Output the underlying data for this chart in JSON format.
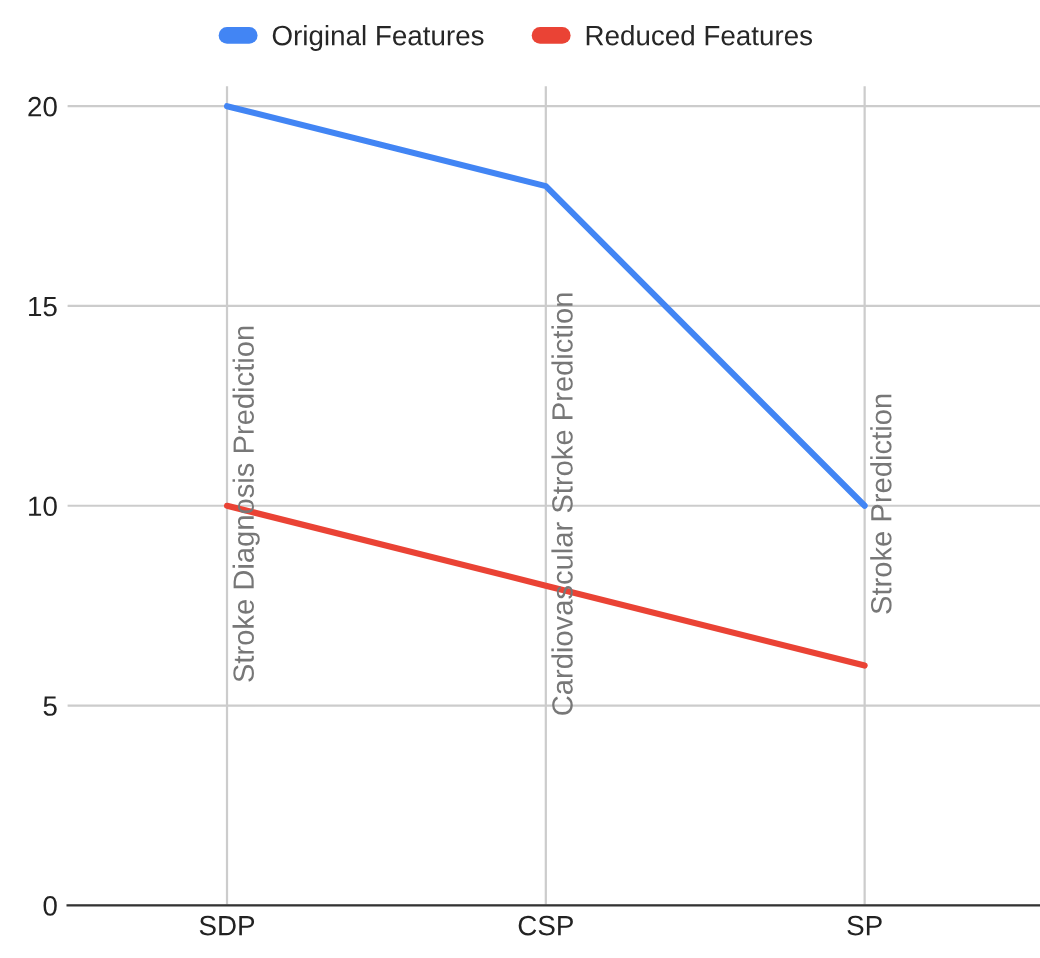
{
  "chart_data": {
    "type": "line",
    "categories": [
      "SDP",
      "CSP",
      "SP"
    ],
    "series": [
      {
        "name": "Original Features",
        "color": "#4285f4",
        "values": [
          20,
          18,
          10
        ]
      },
      {
        "name": "Reduced Features",
        "color": "#ea4335",
        "values": [
          10,
          8,
          6
        ]
      }
    ],
    "ylim": [
      0,
      20.5
    ],
    "yticks": [
      0,
      5,
      10,
      15,
      20
    ],
    "grid": true,
    "legend": "top",
    "marker": "none",
    "line_style": "solid",
    "annotations": [
      "Stroke Diagnosis Prediction",
      "Cardiovascular Stroke Prediction",
      "Stroke Prediction"
    ]
  }
}
